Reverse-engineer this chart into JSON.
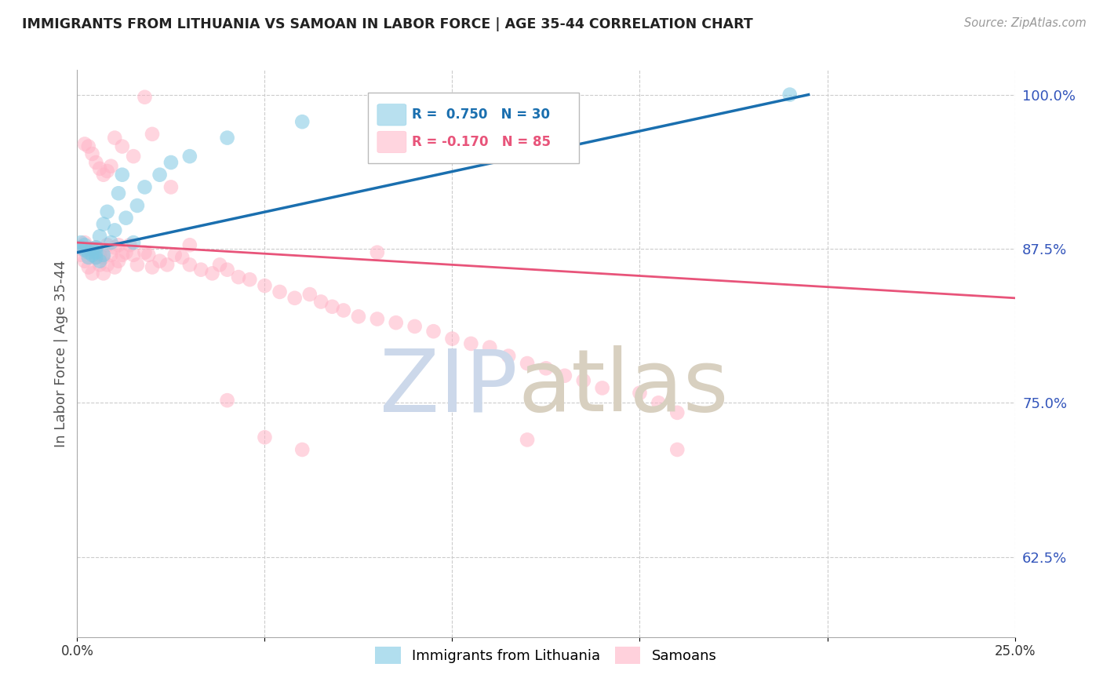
{
  "title": "IMMIGRANTS FROM LITHUANIA VS SAMOAN IN LABOR FORCE | AGE 35-44 CORRELATION CHART",
  "source": "Source: ZipAtlas.com",
  "ylabel": "In Labor Force | Age 35-44",
  "xlim": [
    0.0,
    0.25
  ],
  "ylim": [
    0.56,
    1.02
  ],
  "xticks": [
    0.0,
    0.05,
    0.1,
    0.15,
    0.2,
    0.25
  ],
  "xticklabels": [
    "0.0%",
    "",
    "",
    "",
    "",
    "25.0%"
  ],
  "yticks_right": [
    1.0,
    0.875,
    0.75,
    0.625
  ],
  "ytick_right_labels": [
    "100.0%",
    "87.5%",
    "75.0%",
    "62.5%"
  ],
  "R_blue": 0.75,
  "N_blue": 30,
  "R_pink": -0.17,
  "N_pink": 85,
  "blue_color": "#7ec8e3",
  "pink_color": "#ffb3c6",
  "blue_line_color": "#1a6faf",
  "pink_line_color": "#e8547a",
  "title_color": "#222222",
  "axis_label_color": "#555555",
  "right_tick_color": "#3355bb",
  "legend_label_blue": "Immigrants from Lithuania",
  "legend_label_pink": "Samoans",
  "blue_x": [
    0.001,
    0.001,
    0.002,
    0.002,
    0.003,
    0.003,
    0.004,
    0.004,
    0.005,
    0.005,
    0.005,
    0.006,
    0.006,
    0.007,
    0.007,
    0.008,
    0.009,
    0.01,
    0.011,
    0.012,
    0.013,
    0.015,
    0.016,
    0.018,
    0.022,
    0.025,
    0.03,
    0.04,
    0.06,
    0.19
  ],
  "blue_y": [
    0.876,
    0.88,
    0.878,
    0.874,
    0.872,
    0.868,
    0.875,
    0.87,
    0.872,
    0.876,
    0.868,
    0.865,
    0.885,
    0.87,
    0.895,
    0.905,
    0.88,
    0.89,
    0.92,
    0.935,
    0.9,
    0.88,
    0.91,
    0.925,
    0.935,
    0.945,
    0.95,
    0.965,
    0.978,
    1.0
  ],
  "pink_x": [
    0.001,
    0.001,
    0.002,
    0.002,
    0.003,
    0.003,
    0.004,
    0.004,
    0.005,
    0.005,
    0.006,
    0.006,
    0.007,
    0.007,
    0.008,
    0.008,
    0.009,
    0.01,
    0.01,
    0.011,
    0.011,
    0.012,
    0.013,
    0.014,
    0.015,
    0.016,
    0.018,
    0.019,
    0.02,
    0.022,
    0.024,
    0.026,
    0.028,
    0.03,
    0.033,
    0.036,
    0.038,
    0.04,
    0.043,
    0.046,
    0.05,
    0.054,
    0.058,
    0.062,
    0.065,
    0.068,
    0.071,
    0.075,
    0.08,
    0.085,
    0.09,
    0.095,
    0.1,
    0.105,
    0.11,
    0.115,
    0.12,
    0.125,
    0.13,
    0.135,
    0.14,
    0.15,
    0.155,
    0.16,
    0.002,
    0.003,
    0.004,
    0.005,
    0.006,
    0.007,
    0.008,
    0.009,
    0.01,
    0.012,
    0.015,
    0.018,
    0.02,
    0.025,
    0.03,
    0.04,
    0.05,
    0.06,
    0.08,
    0.12,
    0.16
  ],
  "pink_y": [
    0.875,
    0.87,
    0.865,
    0.88,
    0.86,
    0.875,
    0.855,
    0.872,
    0.876,
    0.868,
    0.862,
    0.87,
    0.868,
    0.855,
    0.878,
    0.862,
    0.87,
    0.876,
    0.86,
    0.878,
    0.865,
    0.87,
    0.872,
    0.878,
    0.87,
    0.862,
    0.872,
    0.87,
    0.86,
    0.865,
    0.862,
    0.87,
    0.868,
    0.862,
    0.858,
    0.855,
    0.862,
    0.858,
    0.852,
    0.85,
    0.845,
    0.84,
    0.835,
    0.838,
    0.832,
    0.828,
    0.825,
    0.82,
    0.818,
    0.815,
    0.812,
    0.808,
    0.802,
    0.798,
    0.795,
    0.788,
    0.782,
    0.778,
    0.772,
    0.768,
    0.762,
    0.758,
    0.75,
    0.742,
    0.96,
    0.958,
    0.952,
    0.945,
    0.94,
    0.935,
    0.938,
    0.942,
    0.965,
    0.958,
    0.95,
    0.998,
    0.968,
    0.925,
    0.878,
    0.752,
    0.722,
    0.712,
    0.872,
    0.72,
    0.712
  ],
  "grid_color": "#cccccc",
  "watermark_zip_color": "#ccd8ea",
  "watermark_atlas_color": "#d8d0c0"
}
